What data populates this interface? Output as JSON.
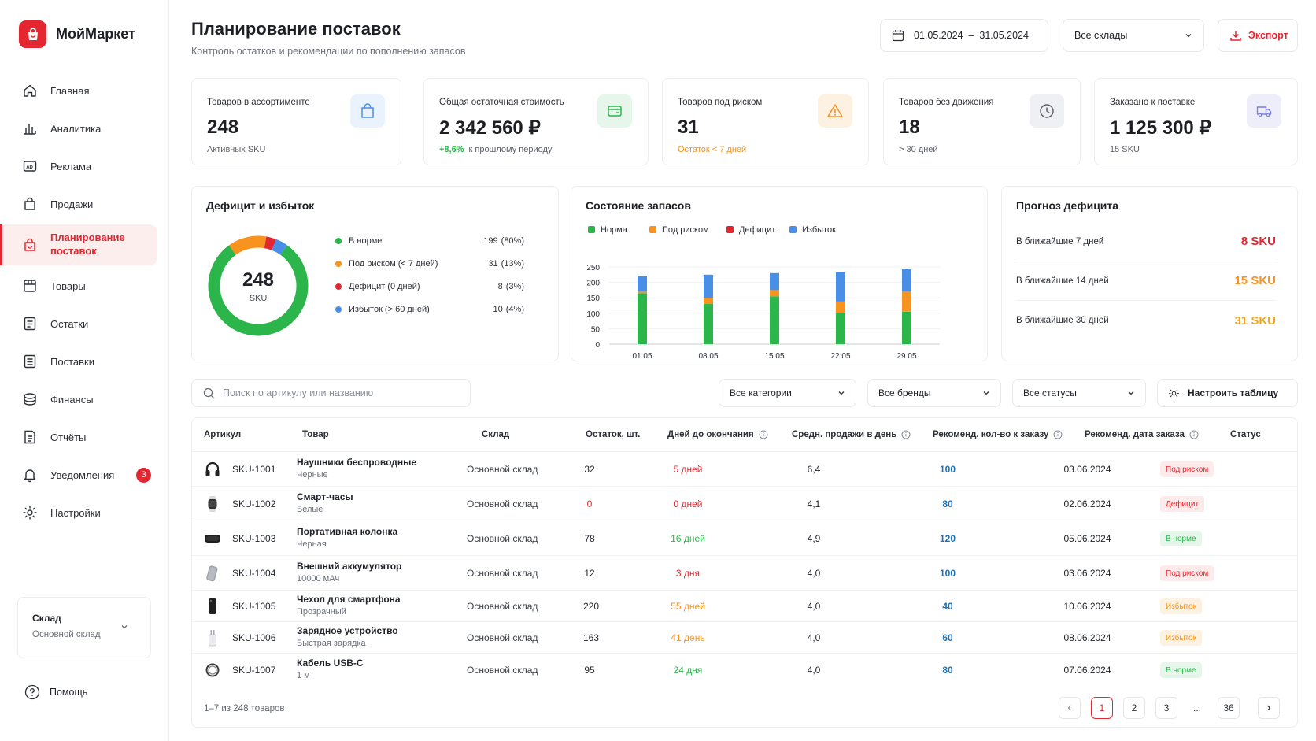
{
  "app": {
    "name": "МойМаркет"
  },
  "nav": [
    {
      "label": "Главная",
      "icon": "home-icon"
    },
    {
      "label": "Аналитика",
      "icon": "chart-icon"
    },
    {
      "label": "Реклама",
      "icon": "ad-icon"
    },
    {
      "label": "Продажи",
      "icon": "bag-icon"
    },
    {
      "label": "Планирование поставок",
      "icon": "planning-icon",
      "active": true
    },
    {
      "label": "Товары",
      "icon": "box-icon"
    },
    {
      "label": "Остатки",
      "icon": "stock-icon"
    },
    {
      "label": "Поставки",
      "icon": "delivery-icon"
    },
    {
      "label": "Финансы",
      "icon": "coins-icon"
    },
    {
      "label": "Отчёты",
      "icon": "report-icon"
    },
    {
      "label": "Уведомления",
      "icon": "bell-icon",
      "badge": "3"
    },
    {
      "label": "Настройки",
      "icon": "gear-icon"
    }
  ],
  "warehouse_card": {
    "title": "Склад",
    "value": "Основной склад"
  },
  "help": {
    "label": "Помощь"
  },
  "header": {
    "title": "Планирование поставок",
    "subtitle": "Контроль остатков и рекомендации по пополнению запасов",
    "date_range": "01.05.2024  –  31.05.2024",
    "warehouse_select": "Все склады",
    "export_label": "Экспорт"
  },
  "kpis": [
    {
      "label": "Товаров в ассортименте",
      "value": "248",
      "sub": "Активных SKU",
      "icon": "bag-icon"
    },
    {
      "label": "Общая остаточная стоимость",
      "value": "2 342 560 ₽",
      "delta": "+8,6%",
      "sub": "к прошлому периоду",
      "icon": "wallet-icon"
    },
    {
      "label": "Товаров под риском",
      "value": "31",
      "sub": "Остаток < 7 дней",
      "icon": "warning-icon"
    },
    {
      "label": "Товаров без движения",
      "value": "18",
      "sub": "> 30 дней",
      "icon": "clock-icon"
    },
    {
      "label": "Заказано к поставке",
      "value": "1 125 300 ₽",
      "sub": "15 SKU",
      "icon": "truck-icon"
    }
  ],
  "deficit": {
    "title": "Дефицит и избыток",
    "total": "248",
    "total_unit": "SKU",
    "segments": [
      {
        "label": "В норме",
        "count": "199",
        "pct": "(80%)",
        "value": 199,
        "color": "#2bb54a"
      },
      {
        "label": "Под риском (< 7 дней)",
        "count": "31",
        "pct": "(13%)",
        "value": 31,
        "color": "#f7931e"
      },
      {
        "label": "Дефицит (0 дней)",
        "count": "8",
        "pct": "(3%)",
        "value": 8,
        "color": "#e3262f"
      },
      {
        "label": "Избыток (> 60 дней)",
        "count": "10",
        "pct": "(4%)",
        "value": 10,
        "color": "#4a8fe7"
      }
    ]
  },
  "chart_data": {
    "type": "bar",
    "title": "Состояние запасов",
    "stacked": true,
    "categories": [
      "01.05",
      "08.05",
      "15.05",
      "22.05",
      "29.05"
    ],
    "ylim": [
      0,
      250
    ],
    "yticks": [
      "0",
      "50",
      "100",
      "150",
      "200",
      "250"
    ],
    "legend_position": "top-left",
    "series": [
      {
        "name": "Норма",
        "color": "#2bb54a",
        "values": [
          165,
          130,
          155,
          100,
          105
        ]
      },
      {
        "name": "Под риском",
        "color": "#f7931e",
        "values": [
          5,
          20,
          20,
          38,
          65
        ]
      },
      {
        "name": "Дефицит",
        "color": "#e3262f",
        "values": [
          0,
          0,
          0,
          0,
          0
        ]
      },
      {
        "name": "Избыток",
        "color": "#4a8fe7",
        "values": [
          50,
          75,
          55,
          95,
          75
        ]
      }
    ]
  },
  "forecast": {
    "title": "Прогноз дефицита",
    "rows": [
      {
        "label": "В ближайшие 7 дней",
        "value": "8 SKU",
        "color": "#e3262f"
      },
      {
        "label": "В ближайшие 14 дней",
        "value": "15 SKU",
        "color": "#f7931e"
      },
      {
        "label": "В ближайшие 30 дней",
        "value": "31 SKU",
        "color": "#f0a81e"
      }
    ]
  },
  "filters": {
    "search_placeholder": "Поиск по артикулу или названию",
    "category": "Все категории",
    "brand": "Все бренды",
    "status": "Все статусы",
    "configure": "Настроить таблицу"
  },
  "table": {
    "headers": [
      "Артикул",
      "Товар",
      "Склад",
      "Остаток, шт.",
      "Дней до окончания",
      "Средн. продажи в день",
      "Рекоменд. кол-во к заказу",
      "Рекоменд. дата заказа",
      "Статус"
    ],
    "rows": [
      {
        "sku": "SKU-1001",
        "name": "Наушники беспроводные",
        "variant": "Черные",
        "warehouse": "Основной склад",
        "stock": "32",
        "days": "5 дней",
        "days_color": "#e3262f",
        "avg": "6,4",
        "rec_qty": "100",
        "rec_date": "03.06.2024",
        "status": "Под риском",
        "status_bg": "#fdeaea",
        "status_fg": "#e3262f",
        "img": "headphones"
      },
      {
        "sku": "SKU-1002",
        "name": "Смарт-часы",
        "variant": "Белые",
        "warehouse": "Основной склад",
        "stock": "0",
        "stock_color": "#e3262f",
        "days": "0 дней",
        "days_color": "#e3262f",
        "avg": "4,1",
        "rec_qty": "80",
        "rec_date": "02.06.2024",
        "status": "Дефицит",
        "status_bg": "#fdeaea",
        "status_fg": "#e3262f",
        "img": "watch"
      },
      {
        "sku": "SKU-1003",
        "name": "Портативная колонка",
        "variant": "Черная",
        "warehouse": "Основной склад",
        "stock": "78",
        "days": "16 дней",
        "days_color": "#2bb54a",
        "avg": "4,9",
        "rec_qty": "120",
        "rec_date": "05.06.2024",
        "status": "В норме",
        "status_bg": "#e6f6ea",
        "status_fg": "#2bb54a",
        "img": "speaker"
      },
      {
        "sku": "SKU-1004",
        "name": "Внешний аккумулятор",
        "variant": "10000 мАч",
        "warehouse": "Основной склад",
        "stock": "12",
        "days": "3 дня",
        "days_color": "#e3262f",
        "avg": "4,0",
        "rec_qty": "100",
        "rec_date": "03.06.2024",
        "status": "Под риском",
        "status_bg": "#fdeaea",
        "status_fg": "#e3262f",
        "img": "powerbank"
      },
      {
        "sku": "SKU-1005",
        "name": "Чехол для смартфона",
        "variant": "Прозрачный",
        "warehouse": "Основной склад",
        "stock": "220",
        "days": "55 дней",
        "days_color": "#f7931e",
        "avg": "4,0",
        "rec_qty": "40",
        "rec_date": "10.06.2024",
        "status": "Избыток",
        "status_bg": "#fdf2e2",
        "status_fg": "#f7931e",
        "img": "case"
      },
      {
        "sku": "SKU-1006",
        "name": "Зарядное устройство",
        "variant": "Быстрая зарядка",
        "warehouse": "Основной склад",
        "stock": "163",
        "days": "41 день",
        "days_color": "#f7931e",
        "avg": "4,0",
        "rec_qty": "60",
        "rec_date": "08.06.2024",
        "status": "Избыток",
        "status_bg": "#fdf2e2",
        "status_fg": "#f7931e",
        "img": "charger"
      },
      {
        "sku": "SKU-1007",
        "name": "Кабель USB-C",
        "variant": "1 м",
        "warehouse": "Основной склад",
        "stock": "95",
        "days": "24 дня",
        "days_color": "#2bb54a",
        "avg": "4,0",
        "rec_qty": "80",
        "rec_date": "07.06.2024",
        "status": "В норме",
        "status_bg": "#e6f6ea",
        "status_fg": "#2bb54a",
        "img": "cable"
      }
    ],
    "footer": "1–7 из 248 товаров"
  },
  "pagination": {
    "pages": [
      "1",
      "2",
      "3",
      "...",
      "36"
    ],
    "current": "1"
  },
  "colors": {
    "accent": "#e3262f",
    "link": "#1f6fb5"
  }
}
